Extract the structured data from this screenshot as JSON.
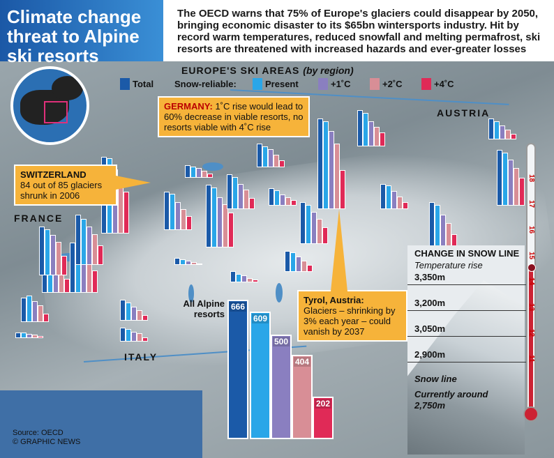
{
  "header": {
    "title": "Climate change threat to Alpine ski resorts",
    "intro": "The OECD warns that 75% of Europe's glaciers could disappear by 2050, bringing economic disaster to its $65bn wintersports industry. Hit by record warm temperatures, reduced snowfall and melting permafrost, ski resorts are threatened with increased hazards and ever-greater losses"
  },
  "legend": {
    "title": "EUROPE'S SKI AREAS",
    "subtitle": "(by region)",
    "total": "Total",
    "snow_reliable": "Snow-reliable:",
    "present": "Present",
    "plus1": "+1˚C",
    "plus2": "+2˚C",
    "plus4": "+4˚C",
    "colors": {
      "total": "#1b5aa8",
      "present": "#2aa6e8",
      "plus1": "#8a7fc0",
      "plus2": "#d88e96",
      "plus4": "#e02a57"
    }
  },
  "countries": {
    "france": "FRANCE",
    "italy": "ITALY",
    "austria": "AUSTRIA"
  },
  "callouts": {
    "germany": {
      "title": "GERMANY:",
      "text": "1˚C rise would lead to 60% decrease in viable resorts, no resorts viable with 4˚C rise"
    },
    "switzerland": {
      "title": "SWITZERLAND",
      "text": "84 out of 85 glaciers shrunk in 2006"
    },
    "tyrol": {
      "title": "Tyrol, Austria:",
      "text": "Glaciers – shrinking by 3% each year – could vanish by 2037"
    }
  },
  "alpine_totals": {
    "label": "All Alpine resorts",
    "values": {
      "total": 666,
      "present": 609,
      "plus1": 500,
      "plus2": 404,
      "plus4": 202
    }
  },
  "snow_line": {
    "title": "CHANGE IN SNOW LINE",
    "subtitle": "Temperature rise",
    "levels": [
      "3,350m",
      "3,200m",
      "3,050m",
      "2,900m"
    ],
    "snow_line_label": "Snow line",
    "current_label": "Currently around",
    "current_value": "2,750m"
  },
  "thermometer": {
    "ticks": [
      "18",
      "17",
      "16",
      "15",
      "14",
      "13",
      "12",
      "11"
    ]
  },
  "source": {
    "line1": "Source: OECD",
    "line2": "© GRAPHIC NEWS"
  }
}
